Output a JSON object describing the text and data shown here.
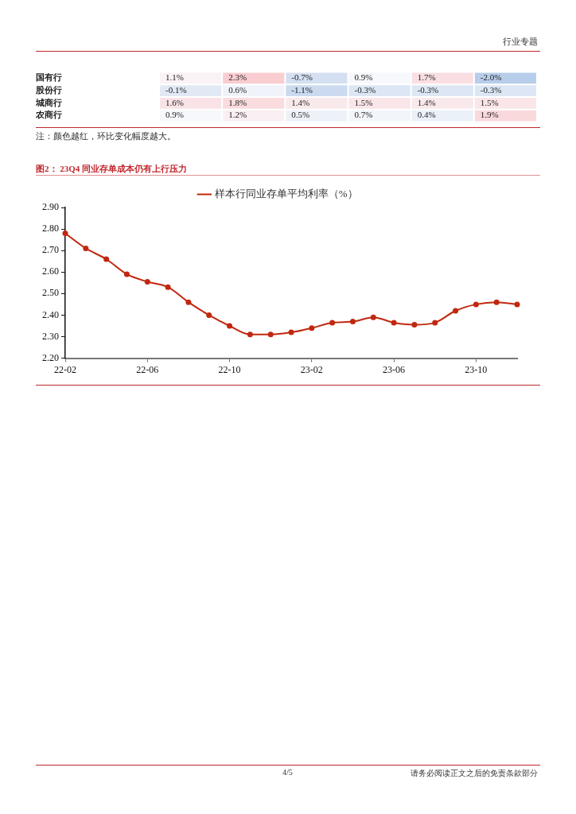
{
  "chart_data": [
    {
      "type": "heatmap",
      "categories": [
        null,
        null,
        null,
        null,
        null,
        null
      ],
      "y_categories": [
        "国有行",
        "股份行",
        "城商行",
        "农商行"
      ],
      "cells": [
        [
          1.1,
          2.3,
          -0.7,
          0.9,
          1.7,
          -2.0
        ],
        [
          -0.1,
          0.6,
          -1.1,
          -0.3,
          -0.3,
          -0.3
        ],
        [
          1.6,
          1.8,
          1.4,
          1.5,
          1.4,
          1.5
        ],
        [
          0.9,
          1.2,
          0.5,
          0.7,
          0.4,
          1.9
        ]
      ],
      "cell_labels": [
        [
          "1.1%",
          "2.3%",
          "-0.7%",
          "0.9%",
          "1.7%",
          "-2.0%"
        ],
        [
          "-0.1%",
          "0.6%",
          "-1.1%",
          "-0.3%",
          "-0.3%",
          "-0.3%"
        ],
        [
          "1.6%",
          "1.8%",
          "1.4%",
          "1.5%",
          "1.4%",
          "1.5%"
        ],
        [
          "0.9%",
          "1.2%",
          "0.5%",
          "0.7%",
          "0.4%",
          "1.9%"
        ]
      ],
      "annotations": [
        "行业专题",
        "注：颜色越红，环比变化幅度越大。"
      ]
    },
    {
      "type": "line",
      "title": "图2：  23Q4 同业存单成本仍有上行压力",
      "categories": [
        "22-02",
        null,
        null,
        null,
        "22-06",
        null,
        null,
        null,
        "22-10",
        null,
        null,
        null,
        "23-02",
        null,
        null,
        null,
        "23-06",
        null,
        null,
        null,
        "23-10",
        null,
        null
      ],
      "series": [
        {
          "name": "样本行同业存单平均利率（%）",
          "color": "#c0280f",
          "values": [
            2.78,
            2.71,
            2.66,
            2.59,
            2.555,
            2.53,
            2.46,
            2.4,
            2.35,
            2.31,
            2.31,
            2.32,
            2.34,
            2.365,
            2.37,
            2.39,
            2.365,
            2.355,
            2.365,
            2.42,
            2.45,
            2.46,
            2.45
          ]
        }
      ],
      "ylim": [
        2.2,
        2.9
      ],
      "yticks": [
        {
          "value": 2.2,
          "label": "2.20"
        },
        {
          "value": 2.3,
          "label": "2.30"
        },
        {
          "value": 2.4,
          "label": "2.40"
        },
        {
          "value": 2.5,
          "label": "2.50"
        },
        {
          "value": 2.6,
          "label": "2.60"
        },
        {
          "value": 2.7,
          "label": "2.70"
        },
        {
          "value": 2.8,
          "label": "2.80"
        },
        {
          "value": 2.9,
          "label": "2.90"
        }
      ],
      "legend": "top",
      "marker": "circle",
      "line_style": "solid",
      "grid": false,
      "annotations": [
        "4/5",
        "请务必阅读正文之后的免责条款部分"
      ]
    }
  ]
}
